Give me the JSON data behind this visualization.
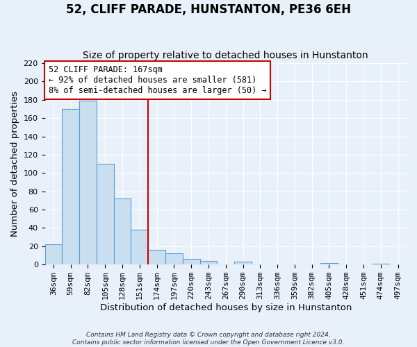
{
  "title": "52, CLIFF PARADE, HUNSTANTON, PE36 6EH",
  "subtitle": "Size of property relative to detached houses in Hunstanton",
  "xlabel": "Distribution of detached houses by size in Hunstanton",
  "ylabel": "Number of detached properties",
  "footer_line1": "Contains HM Land Registry data © Crown copyright and database right 2024.",
  "footer_line2": "Contains public sector information licensed under the Open Government Licence v3.0.",
  "bin_labels": [
    "36sqm",
    "59sqm",
    "82sqm",
    "105sqm",
    "128sqm",
    "151sqm",
    "174sqm",
    "197sqm",
    "220sqm",
    "243sqm",
    "267sqm",
    "290sqm",
    "313sqm",
    "336sqm",
    "359sqm",
    "382sqm",
    "405sqm",
    "428sqm",
    "451sqm",
    "474sqm",
    "497sqm"
  ],
  "bar_values": [
    22,
    170,
    179,
    110,
    72,
    38,
    16,
    12,
    6,
    4,
    0,
    3,
    0,
    0,
    0,
    0,
    2,
    0,
    0,
    1,
    0
  ],
  "bar_color": "#c9dff0",
  "bar_edge_color": "#5b9bd5",
  "vline_x": 5.5,
  "vline_color": "#cc0000",
  "annotation_line1": "52 CLIFF PARADE: 167sqm",
  "annotation_line2": "← 92% of detached houses are smaller (581)",
  "annotation_line3": "8% of semi-detached houses are larger (50) →",
  "annotation_box_facecolor": "#ffffff",
  "annotation_box_edgecolor": "#cc0000",
  "ylim": [
    0,
    220
  ],
  "yticks": [
    0,
    20,
    40,
    60,
    80,
    100,
    120,
    140,
    160,
    180,
    200,
    220
  ],
  "background_color": "#e8f1fa",
  "grid_color": "#ffffff",
  "title_fontsize": 12,
  "subtitle_fontsize": 10,
  "axis_label_fontsize": 9.5,
  "tick_fontsize": 8,
  "annotation_fontsize": 8.5,
  "footer_fontsize": 6.5
}
